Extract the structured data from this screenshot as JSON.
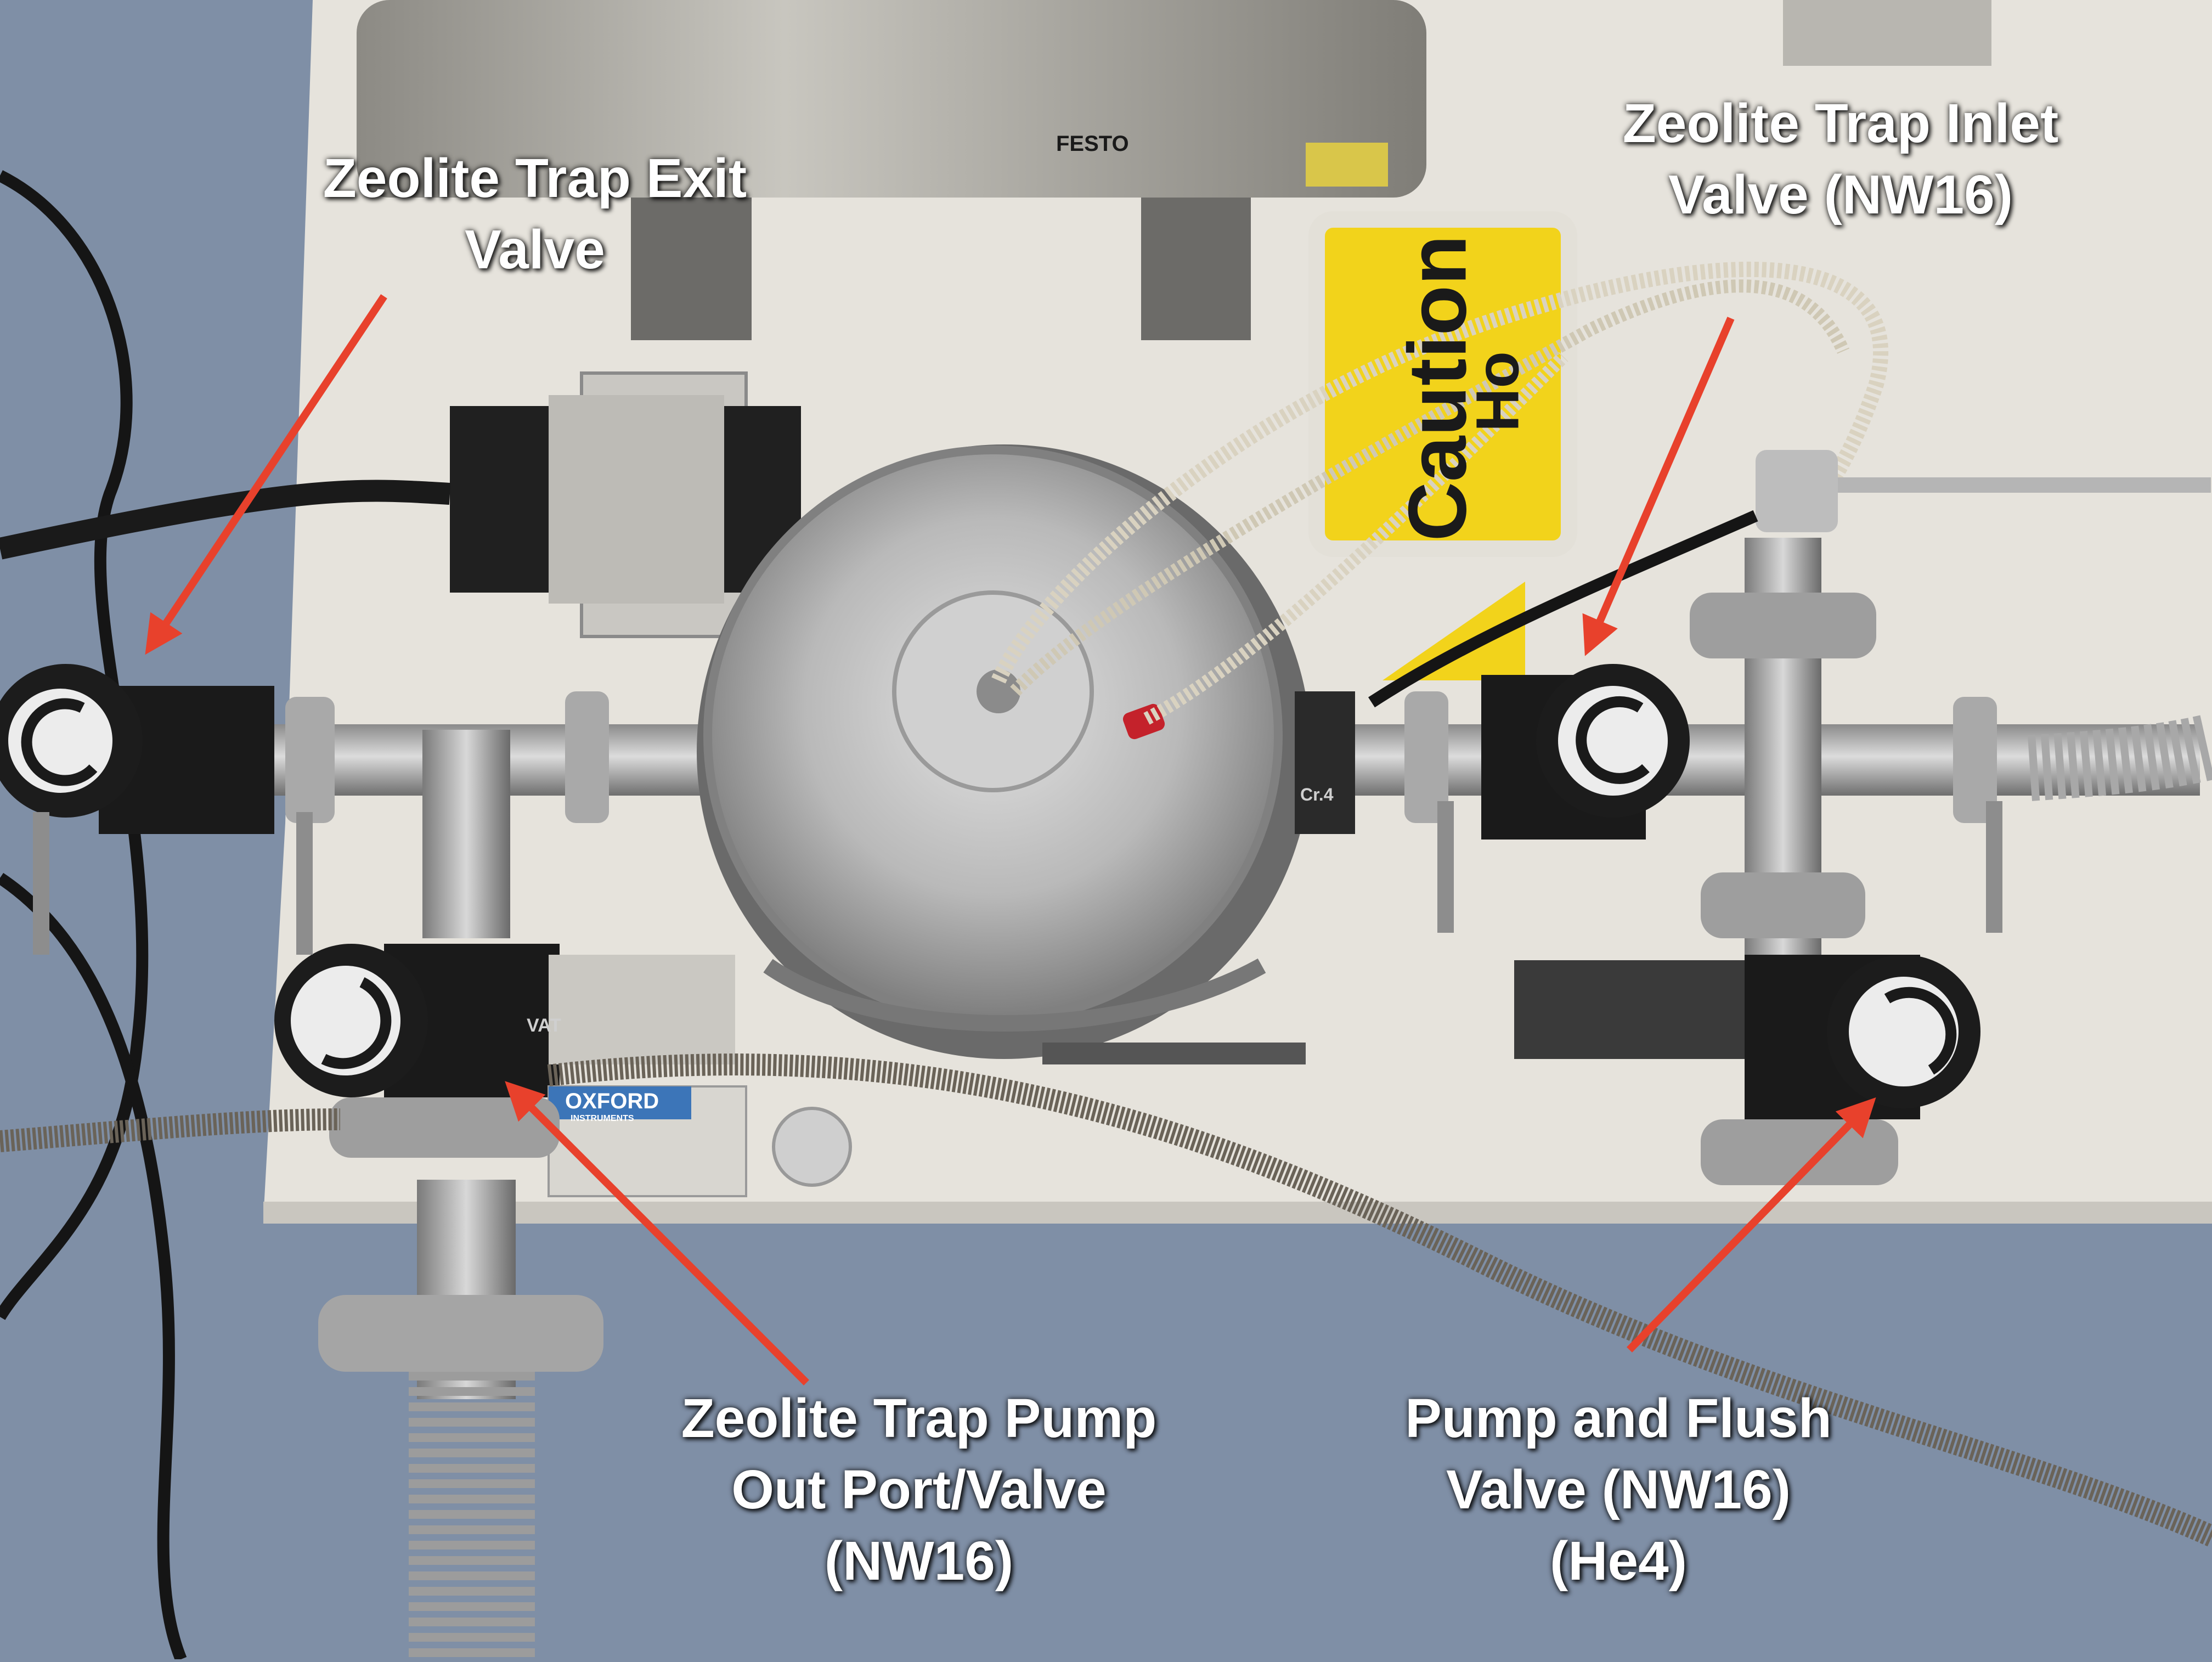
{
  "annotations": [
    {
      "id": "exit",
      "lines": [
        "Zeolite Trap Exit",
        "Valve"
      ]
    },
    {
      "id": "inlet",
      "lines": [
        "Zeolite Trap Inlet",
        "Valve (NW16)"
      ]
    },
    {
      "id": "pumpout",
      "lines": [
        "Zeolite Trap Pump",
        "Out Port/Valve",
        "(NW16)"
      ]
    },
    {
      "id": "flush",
      "lines": [
        "Pump and Flush",
        "Valve (NW16)",
        "(He4)"
      ]
    }
  ],
  "device_markings": {
    "festo": "FESTO",
    "caution": "Caution",
    "hot": "Ho",
    "oxford": "OXFORD",
    "instruments": "INSTRUMENTS",
    "vat": "VAT",
    "cr": "Cr.4"
  },
  "colors": {
    "background": "#7f8fa6",
    "arrow": "#e8412c",
    "caution_yellow": "#f2d31b",
    "label_text": "#ffffff"
  }
}
